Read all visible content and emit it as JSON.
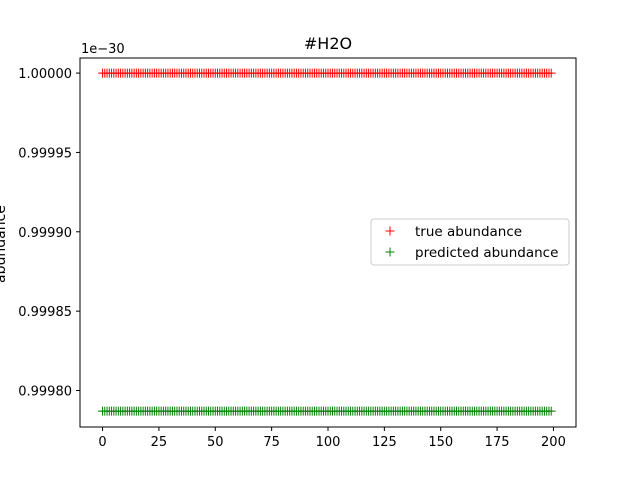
{
  "chart_data": {
    "type": "scatter",
    "title": "#H2O",
    "xlabel": "",
    "ylabel": "abundance",
    "offset_text": "1e−30",
    "xlim": [
      -10,
      210
    ],
    "ylim": [
      0.999777,
      1.0000095
    ],
    "xticks": [
      0,
      25,
      50,
      75,
      100,
      125,
      150,
      175,
      200
    ],
    "xtick_labels": [
      "0",
      "25",
      "50",
      "75",
      "100",
      "125",
      "150",
      "175",
      "200"
    ],
    "yticks": [
      0.9998,
      0.99985,
      0.9999,
      0.99995,
      1.0
    ],
    "ytick_labels": [
      "0.99980",
      "0.99985",
      "0.99990",
      "0.99995",
      "1.00000"
    ],
    "grid": false,
    "legend_position": "center right",
    "x_range": [
      0,
      199
    ],
    "series": [
      {
        "name": "true abundance",
        "marker": "+",
        "color": "#ff0000",
        "constant_value": 1.0,
        "n_points": 200
      },
      {
        "name": "predicted abundance",
        "marker": "+",
        "color": "#008000",
        "constant_value": 0.999787,
        "n_points": 200
      }
    ]
  }
}
